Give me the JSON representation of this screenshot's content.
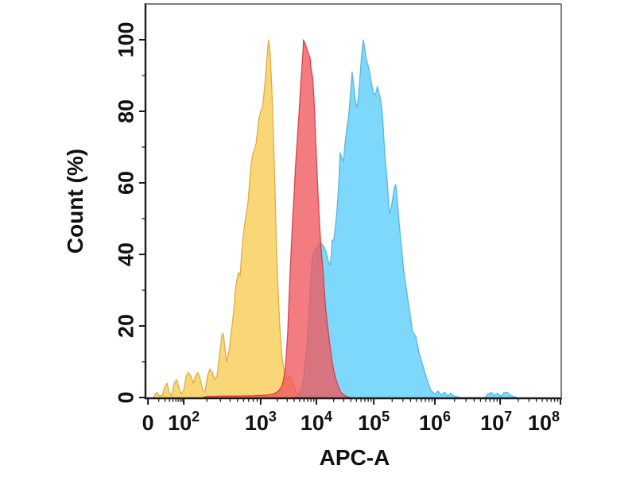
{
  "chart_data": {
    "type": "area",
    "subtype": "flow-cytometry-overlay-histogram",
    "title": "",
    "xlabel": "APC-A",
    "ylabel": "Count  (%)",
    "grid": false,
    "legend": null,
    "x_axis": {
      "scale": "logicle",
      "ticks": [
        {
          "label": "0",
          "frac": 0.006
        },
        {
          "base": "10",
          "exp": "2",
          "frac": 0.092
        },
        {
          "base": "10",
          "exp": "3",
          "frac": 0.277
        },
        {
          "base": "10",
          "exp": "4",
          "frac": 0.411
        },
        {
          "base": "10",
          "exp": "5",
          "frac": 0.549
        },
        {
          "base": "10",
          "exp": "6",
          "frac": 0.696
        },
        {
          "base": "10",
          "exp": "7",
          "frac": 0.853,
          "label_dx": -5
        },
        {
          "base": "10",
          "exp": "8",
          "frac": 0.998,
          "label_dx": -21
        }
      ]
    },
    "y_axis": {
      "min": 0,
      "max": 100,
      "major_ticks": [
        0,
        20,
        40,
        60,
        80,
        100
      ],
      "minor_ticks": [
        10,
        30,
        50,
        70,
        90
      ]
    },
    "series": [
      {
        "name": "yellow-histogram",
        "color_name": "gold",
        "fill": "#F7C948",
        "fill_opacity": 0.75,
        "stroke": "#D8A838",
        "approx_peak": {
          "x": "1.4e3",
          "y_pct": 100
        },
        "points": [
          [
            0.019,
            0
          ],
          [
            0.027,
            1.5
          ],
          [
            0.033,
            0.5
          ],
          [
            0.04,
            0.5
          ],
          [
            0.046,
            3
          ],
          [
            0.052,
            4
          ],
          [
            0.057,
            1.5
          ],
          [
            0.063,
            0.5
          ],
          [
            0.069,
            4
          ],
          [
            0.075,
            5
          ],
          [
            0.08,
            3
          ],
          [
            0.086,
            1
          ],
          [
            0.092,
            2
          ],
          [
            0.098,
            6
          ],
          [
            0.103,
            7
          ],
          [
            0.109,
            6
          ],
          [
            0.115,
            4
          ],
          [
            0.12,
            6
          ],
          [
            0.126,
            7
          ],
          [
            0.132,
            5
          ],
          [
            0.138,
            2
          ],
          [
            0.143,
            1.5
          ],
          [
            0.149,
            6
          ],
          [
            0.155,
            8
          ],
          [
            0.161,
            7
          ],
          [
            0.166,
            5
          ],
          [
            0.172,
            6
          ],
          [
            0.178,
            12
          ],
          [
            0.184,
            17.5
          ],
          [
            0.187,
            18
          ],
          [
            0.191,
            14
          ],
          [
            0.195,
            10
          ],
          [
            0.201,
            13
          ],
          [
            0.205,
            17
          ],
          [
            0.208,
            20
          ],
          [
            0.212,
            24
          ],
          [
            0.216,
            30
          ],
          [
            0.22,
            33
          ],
          [
            0.224,
            35
          ],
          [
            0.228,
            34
          ],
          [
            0.231,
            40
          ],
          [
            0.235,
            45
          ],
          [
            0.239,
            49
          ],
          [
            0.243,
            52
          ],
          [
            0.247,
            55
          ],
          [
            0.25,
            60
          ],
          [
            0.254,
            65
          ],
          [
            0.258,
            68
          ],
          [
            0.262,
            69
          ],
          [
            0.266,
            71
          ],
          [
            0.27,
            75
          ],
          [
            0.273,
            78
          ],
          [
            0.277,
            80
          ],
          [
            0.281,
            81
          ],
          [
            0.285,
            85
          ],
          [
            0.289,
            90
          ],
          [
            0.293,
            96
          ],
          [
            0.296,
            100
          ],
          [
            0.3,
            96
          ],
          [
            0.304,
            86
          ],
          [
            0.308,
            72
          ],
          [
            0.312,
            56
          ],
          [
            0.315,
            42
          ],
          [
            0.319,
            30
          ],
          [
            0.323,
            20
          ],
          [
            0.327,
            13
          ],
          [
            0.331,
            9
          ],
          [
            0.335,
            6.5
          ],
          [
            0.338,
            5.5
          ],
          [
            0.342,
            5.5
          ],
          [
            0.346,
            6
          ],
          [
            0.35,
            5.5
          ],
          [
            0.354,
            4
          ],
          [
            0.358,
            3
          ],
          [
            0.361,
            2
          ],
          [
            0.365,
            1
          ],
          [
            0.369,
            0.5
          ],
          [
            0.375,
            0
          ]
        ]
      },
      {
        "name": "blue-histogram",
        "color_name": "sky-blue",
        "fill": "#5ACDFA",
        "fill_opacity": 0.78,
        "stroke": "#4FB3D9",
        "approx_peak": {
          "x": "6.6e4",
          "y_pct": 100
        },
        "points": [
          [
            0.358,
            0
          ],
          [
            0.365,
            0.5
          ],
          [
            0.371,
            1.5
          ],
          [
            0.377,
            3
          ],
          [
            0.382,
            7
          ],
          [
            0.388,
            14
          ],
          [
            0.394,
            25
          ],
          [
            0.4,
            38
          ],
          [
            0.403,
            40
          ],
          [
            0.407,
            41
          ],
          [
            0.413,
            42
          ],
          [
            0.419,
            43
          ],
          [
            0.424,
            43
          ],
          [
            0.43,
            42
          ],
          [
            0.436,
            40
          ],
          [
            0.44,
            38
          ],
          [
            0.444,
            37
          ],
          [
            0.447,
            40
          ],
          [
            0.449,
            44
          ],
          [
            0.453,
            44
          ],
          [
            0.457,
            48
          ],
          [
            0.461,
            53
          ],
          [
            0.465,
            60
          ],
          [
            0.468,
            68.5
          ],
          [
            0.472,
            67
          ],
          [
            0.476,
            66
          ],
          [
            0.48,
            71
          ],
          [
            0.484,
            75
          ],
          [
            0.488,
            78
          ],
          [
            0.491,
            82
          ],
          [
            0.495,
            88
          ],
          [
            0.497,
            91
          ],
          [
            0.501,
            87
          ],
          [
            0.505,
            83
          ],
          [
            0.509,
            81
          ],
          [
            0.512,
            84
          ],
          [
            0.516,
            90
          ],
          [
            0.52,
            96
          ],
          [
            0.524,
            100
          ],
          [
            0.528,
            97
          ],
          [
            0.532,
            94
          ],
          [
            0.535,
            93
          ],
          [
            0.539,
            91
          ],
          [
            0.543,
            88
          ],
          [
            0.547,
            86
          ],
          [
            0.551,
            84.5
          ],
          [
            0.554,
            85
          ],
          [
            0.558,
            87
          ],
          [
            0.562,
            85
          ],
          [
            0.566,
            83
          ],
          [
            0.57,
            79
          ],
          [
            0.574,
            71
          ],
          [
            0.577,
            66
          ],
          [
            0.581,
            61
          ],
          [
            0.585,
            54
          ],
          [
            0.587,
            51.5
          ],
          [
            0.591,
            53
          ],
          [
            0.595,
            56
          ],
          [
            0.598,
            58.5
          ],
          [
            0.602,
            59.5
          ],
          [
            0.606,
            55
          ],
          [
            0.61,
            49
          ],
          [
            0.616,
            41.5
          ],
          [
            0.621,
            35.5
          ],
          [
            0.629,
            29
          ],
          [
            0.635,
            24.5
          ],
          [
            0.642,
            18.5
          ],
          [
            0.65,
            17
          ],
          [
            0.658,
            12.5
          ],
          [
            0.667,
            9
          ],
          [
            0.677,
            5
          ],
          [
            0.686,
            2
          ],
          [
            0.696,
            1
          ],
          [
            0.704,
            1.8
          ],
          [
            0.711,
            0.7
          ],
          [
            0.719,
            1.5
          ],
          [
            0.727,
            0.5
          ],
          [
            0.734,
            1.2
          ],
          [
            0.742,
            0.4
          ],
          [
            0.75,
            0.2
          ],
          [
            0.759,
            0
          ],
          [
            0.816,
            0
          ],
          [
            0.824,
            1
          ],
          [
            0.832,
            1.4
          ],
          [
            0.839,
            0.6
          ],
          [
            0.847,
            1.2
          ],
          [
            0.855,
            0.4
          ],
          [
            0.862,
            1.3
          ],
          [
            0.87,
            1.5
          ],
          [
            0.878,
            0.6
          ],
          [
            0.885,
            0.3
          ],
          [
            0.893,
            0
          ]
        ]
      },
      {
        "name": "red-histogram",
        "color_name": "red",
        "fill": "#F0575C",
        "fill_opacity": 0.78,
        "stroke": "#D23A42",
        "approx_peak": {
          "x": "5.9e3",
          "y_pct": 100
        },
        "points": [
          [
            0.138,
            0
          ],
          [
            0.147,
            0.3
          ],
          [
            0.185,
            0.4
          ],
          [
            0.224,
            0.4
          ],
          [
            0.262,
            0.5
          ],
          [
            0.291,
            0.7
          ],
          [
            0.3,
            0.8
          ],
          [
            0.308,
            1
          ],
          [
            0.316,
            1.5
          ],
          [
            0.321,
            2
          ],
          [
            0.327,
            3
          ],
          [
            0.331,
            4.5
          ],
          [
            0.335,
            7
          ],
          [
            0.338,
            11
          ],
          [
            0.342,
            18
          ],
          [
            0.346,
            30
          ],
          [
            0.35,
            40
          ],
          [
            0.354,
            50
          ],
          [
            0.358,
            58
          ],
          [
            0.361,
            65
          ],
          [
            0.365,
            72
          ],
          [
            0.369,
            79
          ],
          [
            0.373,
            87
          ],
          [
            0.377,
            94
          ],
          [
            0.379,
            97
          ],
          [
            0.38,
            100
          ],
          [
            0.384,
            99
          ],
          [
            0.388,
            97.5
          ],
          [
            0.392,
            96
          ],
          [
            0.396,
            95
          ],
          [
            0.398,
            92
          ],
          [
            0.402,
            89.5
          ],
          [
            0.403,
            88
          ],
          [
            0.405,
            84
          ],
          [
            0.407,
            79
          ],
          [
            0.409,
            73
          ],
          [
            0.411,
            67
          ],
          [
            0.413,
            62
          ],
          [
            0.415,
            57
          ],
          [
            0.417,
            52
          ],
          [
            0.419,
            48
          ],
          [
            0.421,
            44
          ],
          [
            0.423,
            41
          ],
          [
            0.424,
            39
          ],
          [
            0.426,
            37
          ],
          [
            0.428,
            34
          ],
          [
            0.43,
            30
          ],
          [
            0.432,
            27
          ],
          [
            0.434,
            24
          ],
          [
            0.438,
            20
          ],
          [
            0.442,
            16
          ],
          [
            0.446,
            12.5
          ],
          [
            0.449,
            10
          ],
          [
            0.453,
            7.5
          ],
          [
            0.457,
            5.5
          ],
          [
            0.461,
            4
          ],
          [
            0.465,
            2.8
          ],
          [
            0.468,
            1.8
          ],
          [
            0.472,
            1.2
          ],
          [
            0.478,
            0.6
          ],
          [
            0.484,
            0.3
          ],
          [
            0.491,
            0
          ]
        ]
      }
    ]
  }
}
